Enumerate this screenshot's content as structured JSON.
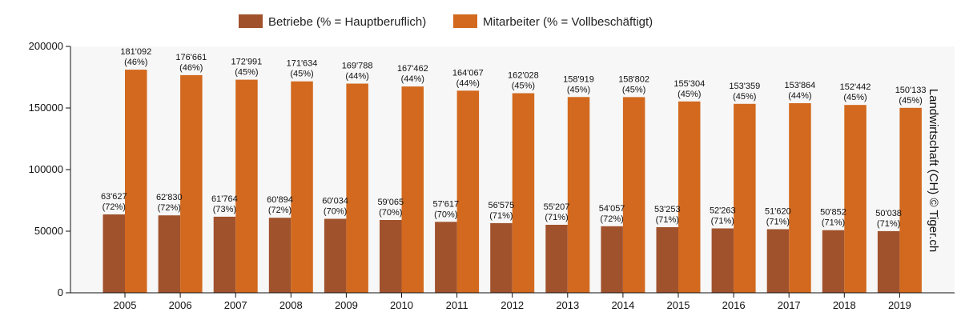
{
  "chart_data": {
    "type": "bar",
    "categories": [
      "2005",
      "2006",
      "2007",
      "2008",
      "2009",
      "2010",
      "2011",
      "2012",
      "2013",
      "2014",
      "2015",
      "2016",
      "2017",
      "2018",
      "2019"
    ],
    "series": [
      {
        "name": "Betriebe (% = Hauptberuflich)",
        "color": "#a0522d",
        "values": [
          63627,
          62830,
          61764,
          60894,
          60034,
          59065,
          57617,
          56575,
          55207,
          54057,
          53253,
          52263,
          51620,
          50852,
          50038
        ],
        "value_labels": [
          "63'627",
          "62'830",
          "61'764",
          "60'894",
          "60'034",
          "59'065",
          "57'617",
          "56'575",
          "55'207",
          "54'057",
          "53'253",
          "52'263",
          "51'620",
          "50'852",
          "50'038"
        ],
        "pct_labels": [
          "(72%)",
          "(72%)",
          "(73%)",
          "(72%)",
          "(70%)",
          "(70%)",
          "(70%)",
          "(71%)",
          "(71%)",
          "(72%)",
          "(71%)",
          "(71%)",
          "(71%)",
          "(71%)",
          "(71%)"
        ]
      },
      {
        "name": "Mitarbeiter (% = Vollbeschäftigt)",
        "color": "#d2691e",
        "values": [
          181092,
          176661,
          172991,
          171634,
          169788,
          167462,
          164067,
          162028,
          158919,
          158802,
          155304,
          153359,
          153864,
          152442,
          150133
        ],
        "value_labels": [
          "181'092",
          "176'661",
          "172'991",
          "171'634",
          "169'788",
          "167'462",
          "164'067",
          "162'028",
          "158'919",
          "158'802",
          "155'304",
          "153'359",
          "153'864",
          "152'442",
          "150'133"
        ],
        "pct_labels": [
          "(46%)",
          "(46%)",
          "(45%)",
          "(45%)",
          "(44%)",
          "(44%)",
          "(44%)",
          "(45%)",
          "(45%)",
          "(45%)",
          "(45%)",
          "(45%)",
          "(44%)",
          "(45%)",
          "(45%)"
        ]
      }
    ],
    "y_ticks": [
      "0",
      "50000",
      "100000",
      "150000",
      "200000"
    ],
    "ylim": [
      0,
      200000
    ],
    "side_label": "Landwirtschaft (CH) © Tiger.ch",
    "legend_position": "top-center",
    "grid": false,
    "plot_background": "#f7f7f7"
  }
}
